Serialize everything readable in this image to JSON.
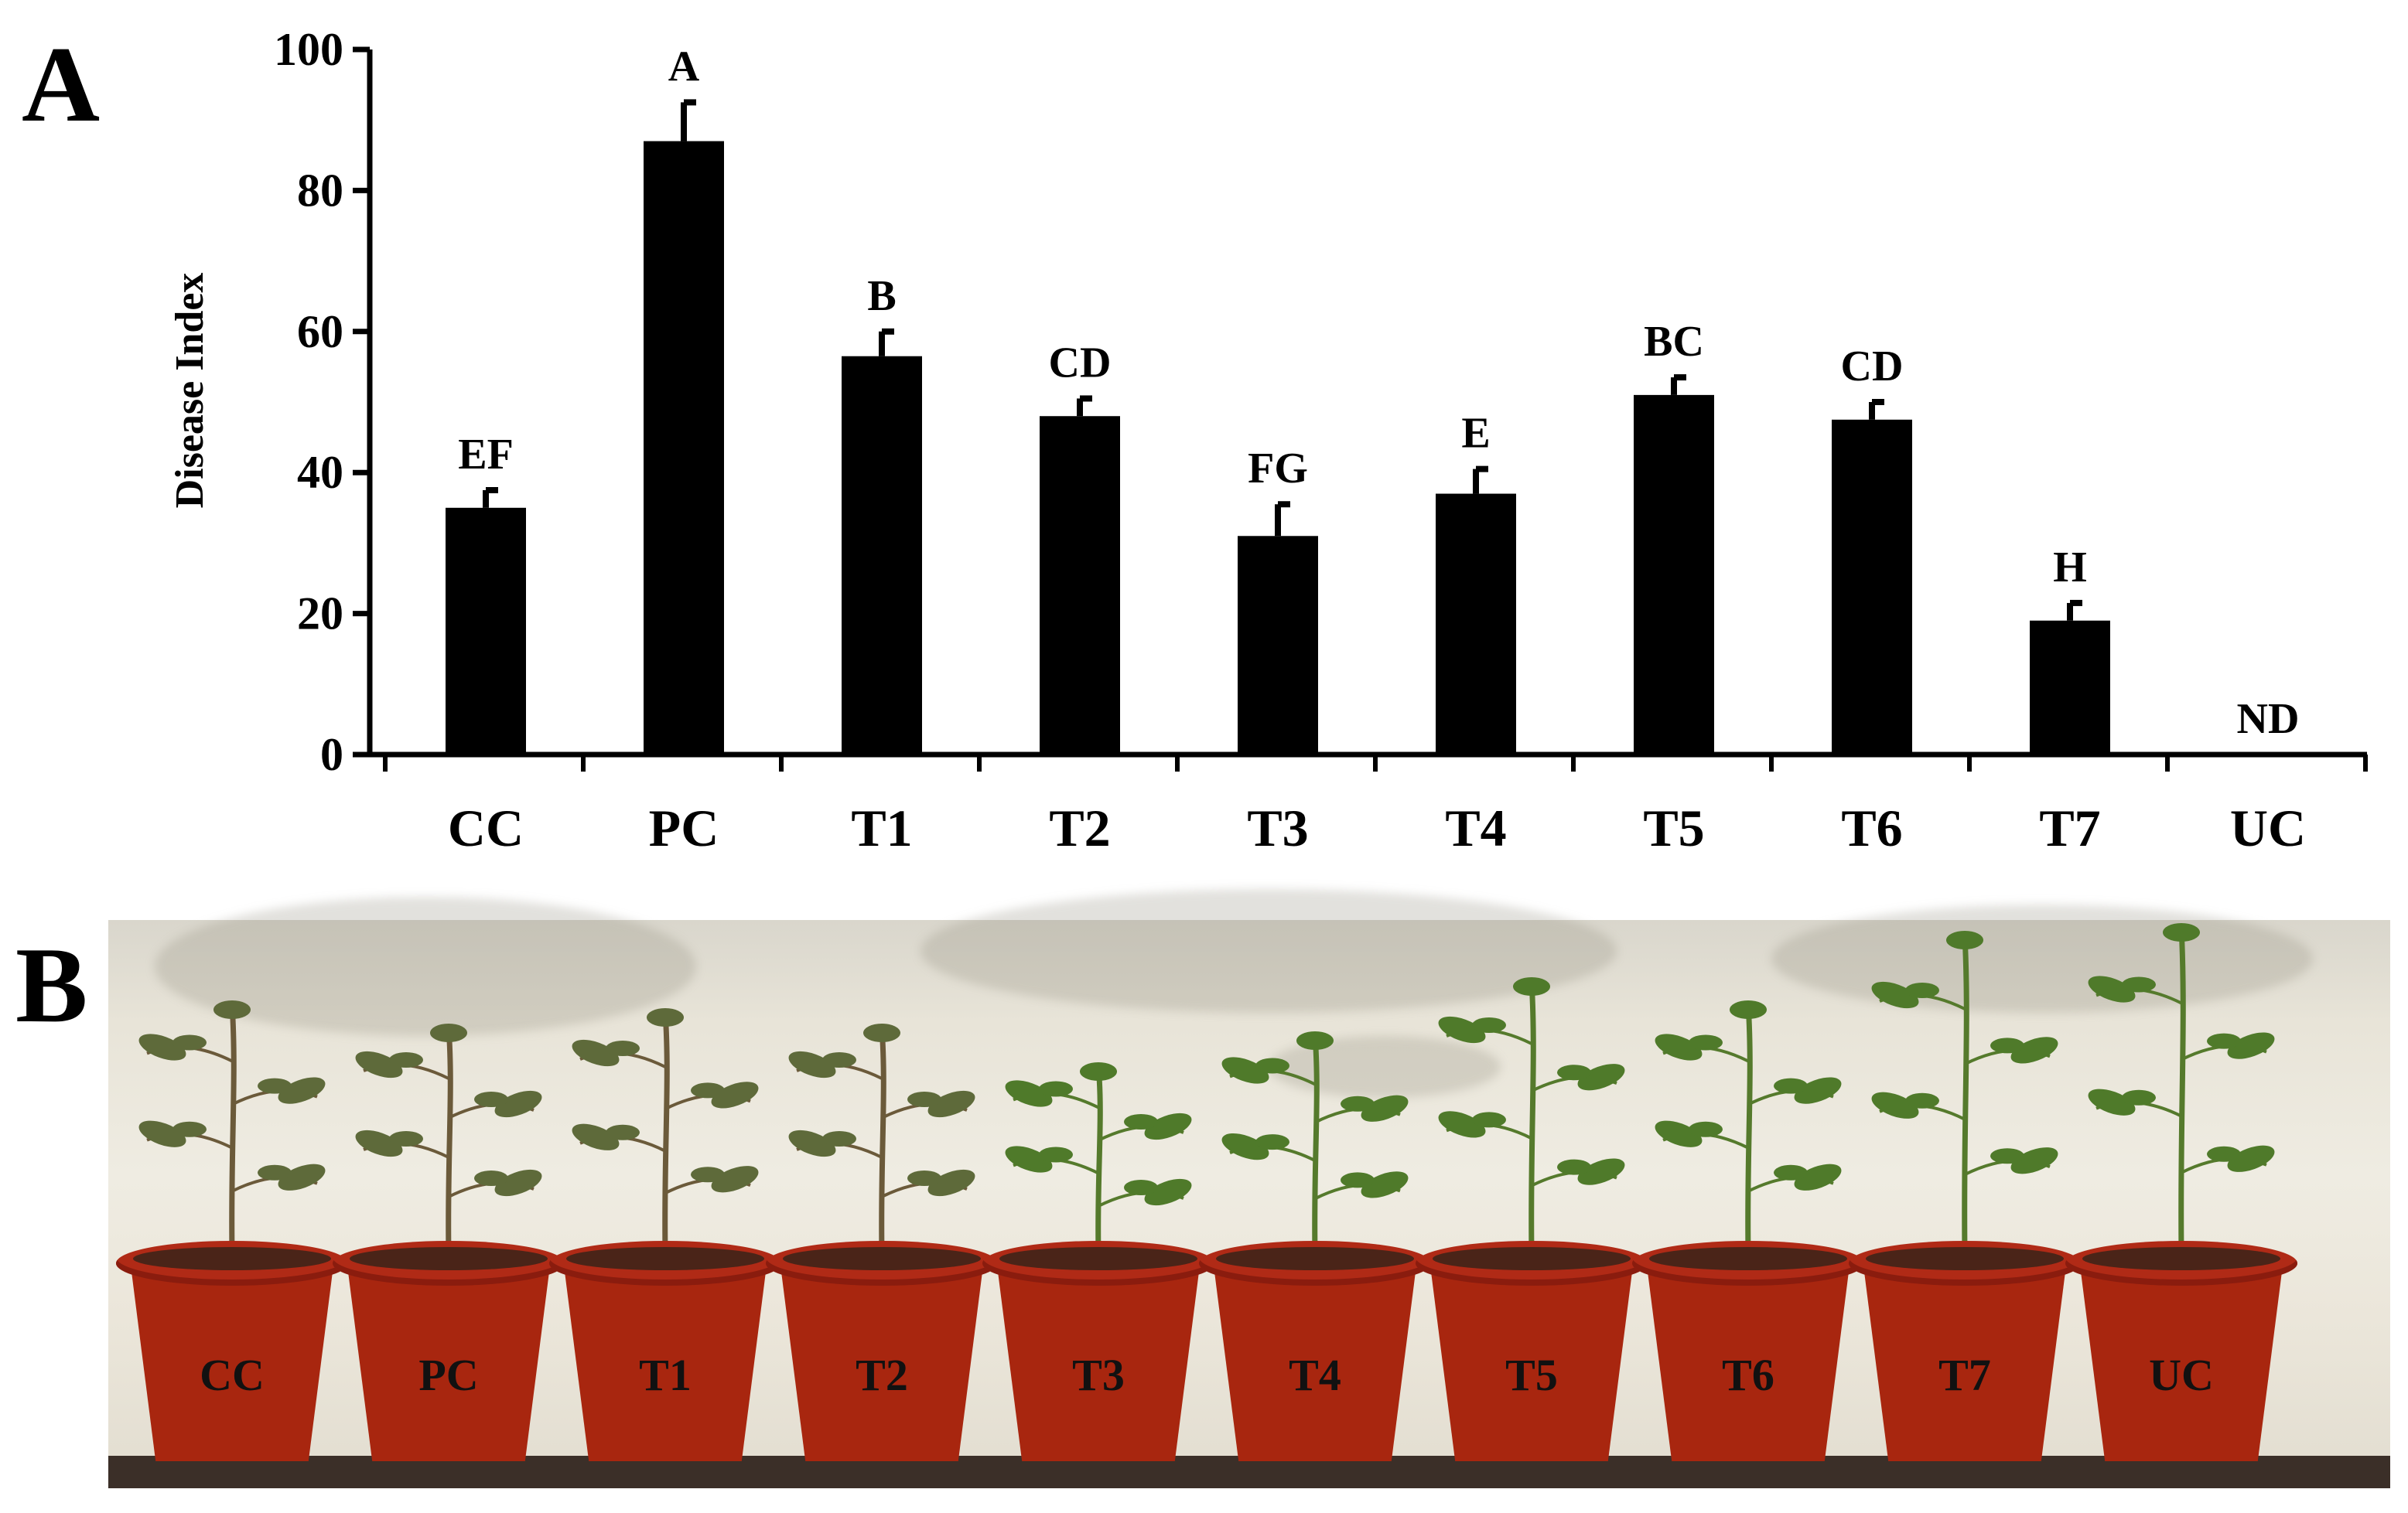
{
  "panels": {
    "a": "A",
    "b": "B"
  },
  "chart_data": {
    "type": "bar",
    "ylabel": "Disease Index",
    "ylim": [
      0,
      100
    ],
    "yticks": [
      0,
      20,
      40,
      60,
      80,
      100
    ],
    "categories": [
      "CC",
      "PC",
      "T1",
      "T2",
      "T3",
      "T4",
      "T5",
      "T6",
      "T7",
      "UC"
    ],
    "values": [
      35,
      87,
      56.5,
      48,
      31,
      37,
      51,
      47.5,
      19,
      0
    ],
    "errors": [
      2.5,
      5.5,
      3.5,
      2.5,
      4.5,
      3.5,
      2.5,
      2.5,
      2.5,
      0
    ],
    "letters": [
      "EF",
      "A",
      "B",
      "CD",
      "FG",
      "E",
      "BC",
      "CD",
      "H",
      "ND"
    ],
    "bar_color": "#000000"
  },
  "photo": {
    "pot_labels": [
      "CC",
      "PC",
      "T1",
      "T2",
      "T3",
      "T4",
      "T5",
      "T6",
      "T7",
      "UC"
    ],
    "pot_color": "#a8260f",
    "leaf_color": "#4f7a2a"
  }
}
